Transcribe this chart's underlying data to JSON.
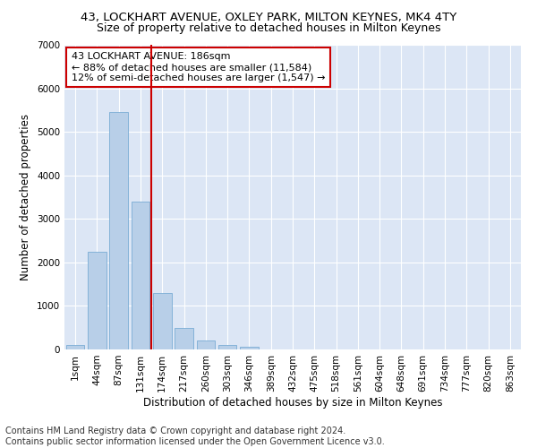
{
  "title": "43, LOCKHART AVENUE, OXLEY PARK, MILTON KEYNES, MK4 4TY",
  "subtitle": "Size of property relative to detached houses in Milton Keynes",
  "xlabel": "Distribution of detached houses by size in Milton Keynes",
  "ylabel": "Number of detached properties",
  "bar_color": "#b8cfe8",
  "bar_edge_color": "#7aacd4",
  "bg_color": "#dce6f5",
  "grid_color": "#ffffff",
  "annotation_text_line1": "43 LOCKHART AVENUE: 186sqm",
  "annotation_text_line2": "← 88% of detached houses are smaller (11,584)",
  "annotation_text_line3": "12% of semi-detached houses are larger (1,547) →",
  "annotation_box_color": "#ffffff",
  "annotation_box_edge_color": "#cc0000",
  "marker_line_color": "#cc0000",
  "categories": [
    "1sqm",
    "44sqm",
    "87sqm",
    "131sqm",
    "174sqm",
    "217sqm",
    "260sqm",
    "303sqm",
    "346sqm",
    "389sqm",
    "432sqm",
    "475sqm",
    "518sqm",
    "561sqm",
    "604sqm",
    "648sqm",
    "691sqm",
    "734sqm",
    "777sqm",
    "820sqm",
    "863sqm"
  ],
  "values": [
    100,
    2250,
    5450,
    3400,
    1300,
    500,
    200,
    100,
    60,
    0,
    0,
    0,
    0,
    0,
    0,
    0,
    0,
    0,
    0,
    0,
    0
  ],
  "marker_bar_index": 4,
  "ylim": [
    0,
    7000
  ],
  "yticks": [
    0,
    1000,
    2000,
    3000,
    4000,
    5000,
    6000,
    7000
  ],
  "footer_line1": "Contains HM Land Registry data © Crown copyright and database right 2024.",
  "footer_line2": "Contains public sector information licensed under the Open Government Licence v3.0.",
  "fig_width": 6.0,
  "fig_height": 5.0,
  "title_fontsize": 9.5,
  "subtitle_fontsize": 9,
  "axis_label_fontsize": 8.5,
  "tick_fontsize": 7.5,
  "annotation_fontsize": 8,
  "footer_fontsize": 7
}
